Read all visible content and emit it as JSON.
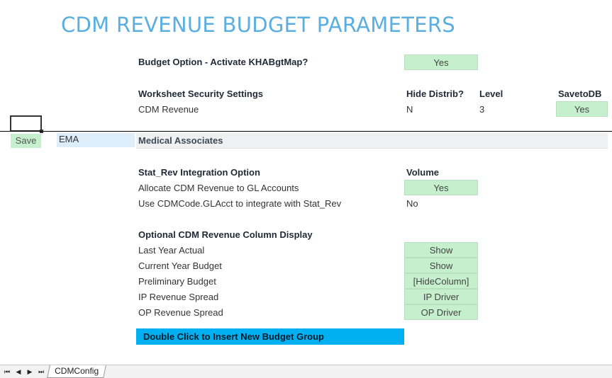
{
  "title": "CDM REVENUE BUDGET PARAMETERS",
  "budget_option": {
    "label": "Budget Option - Activate KHABgtMap?",
    "value": "Yes"
  },
  "security": {
    "heading": "Worksheet Security Settings",
    "col_hide": "Hide Distrib?",
    "col_level": "Level",
    "col_save": "SavetoDB",
    "row_label": "CDM Revenue",
    "row_hide": "N",
    "row_level": "3",
    "row_save": "Yes"
  },
  "save_button": "Save",
  "entity_code": "EMA",
  "entity_name": "Medical Associates",
  "stat_rev": {
    "heading": "Stat_Rev Integration Option",
    "col_heading": "Volume",
    "rows": [
      {
        "label": "Allocate CDM Revenue to GL Accounts",
        "value": "Yes"
      },
      {
        "label": "Use CDMCode.GLAcct to integrate with Stat_Rev",
        "value": "No"
      }
    ]
  },
  "column_display": {
    "heading": "Optional CDM Revenue Column Display",
    "rows": [
      {
        "label": "Last Year Actual",
        "value": "Show"
      },
      {
        "label": "Current Year Budget",
        "value": "Show"
      },
      {
        "label": "Preliminary Budget",
        "value": "[HideColumn]"
      },
      {
        "label": "IP Revenue Spread",
        "value": "IP Driver"
      },
      {
        "label": "OP Revenue Spread",
        "value": "OP Driver"
      }
    ]
  },
  "insert_button": "Double Click to Insert New Budget Group",
  "sheet_tabs": {
    "nav_first": "⏮",
    "nav_prev": "◀",
    "nav_next": "▶",
    "nav_last": "⏭",
    "active_tab": "CDMConfig"
  },
  "colors": {
    "title": "#5aaee0",
    "green_cell": "#c6efce",
    "insert_button": "#00b0f0",
    "entity_code_bg": "#ddeefa"
  }
}
